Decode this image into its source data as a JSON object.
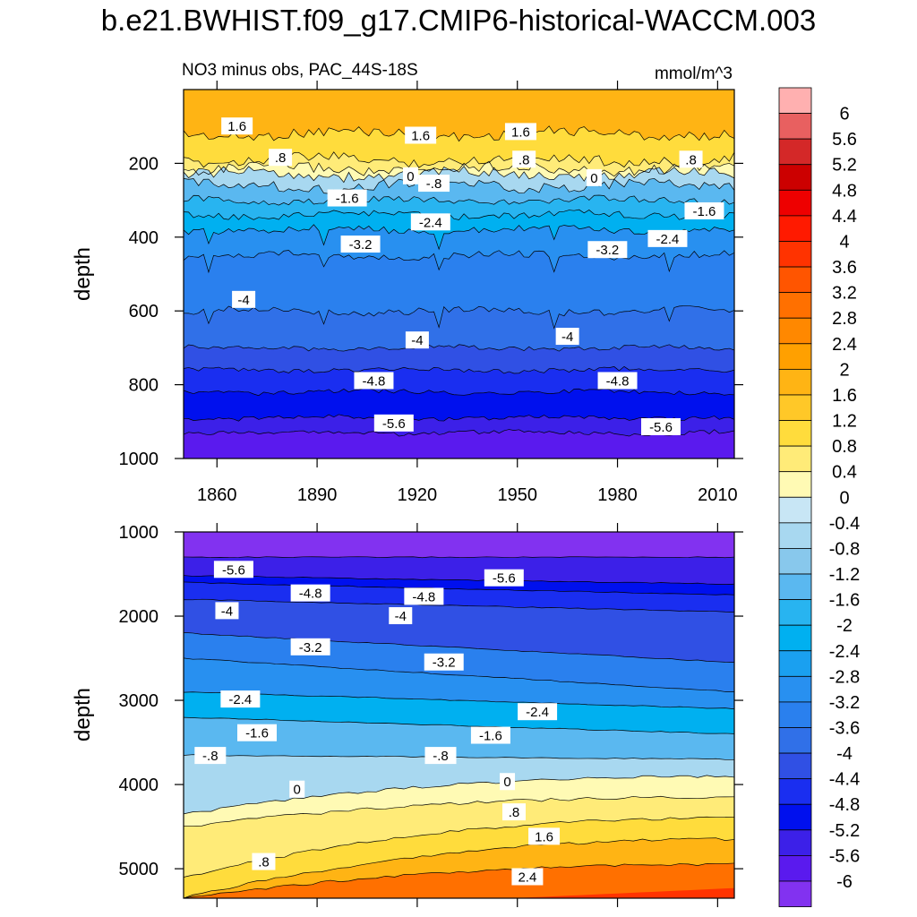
{
  "chart_data": {
    "type": "heatmap",
    "title": "b.e21.BWHIST.f09_g17.CMIP6-historical-WACCM.003",
    "subtitle_left": "NO3 minus obs, PAC_44S-18S",
    "subtitle_right": "mmol/m^3",
    "colorbar": {
      "levels": [
        "6",
        "5.6",
        "5.2",
        "4.8",
        "4.4",
        "4",
        "3.6",
        "3.2",
        "2.8",
        "2.4",
        "2",
        "1.6",
        "1.2",
        "0.8",
        "0.4",
        "0",
        "-0.4",
        "-0.8",
        "-1.2",
        "-1.6",
        "-2",
        "-2.4",
        "-2.8",
        "-3.2",
        "-3.6",
        "-4",
        "-4.4",
        "-4.8",
        "-5.2",
        "-5.6",
        "-6"
      ],
      "colors": [
        "#ffb0b0",
        "#e86060",
        "#d42828",
        "#cc0000",
        "#ee0000",
        "#ff1a00",
        "#ff3300",
        "#ff5500",
        "#ff7000",
        "#ff8800",
        "#ffa000",
        "#ffb414",
        "#ffc828",
        "#ffdc3c",
        "#ffeb78",
        "#fffab4",
        "#c8e6f5",
        "#a8d8f0",
        "#88c8ec",
        "#5ab8f0",
        "#28b4f0",
        "#00b0f0",
        "#1aa0f0",
        "#2890f0",
        "#2a80ee",
        "#3070e8",
        "#3050e4",
        "#1a2ef0",
        "#0010ee",
        "#3c20e8",
        "#5a1aee",
        "#8232f0"
      ]
    },
    "panels": [
      {
        "name": "upper",
        "ylabel": "depth",
        "y_range": [
          0,
          1000
        ],
        "y_reversed": true,
        "y_ticks": [
          200,
          400,
          600,
          800,
          1000
        ],
        "x_range": [
          1850,
          2015
        ],
        "x_ticks": [
          1860,
          1890,
          1920,
          1950,
          1980,
          2010
        ],
        "x_tick_labels": [
          "1860",
          "1890",
          "1920",
          "1950",
          "1980",
          "2010"
        ],
        "contours": [
          {
            "depth": 120,
            "value": 1.6
          },
          {
            "depth": 190,
            "value": 0.8
          },
          {
            "depth": 215,
            "value": 0.4
          },
          {
            "depth": 230,
            "value": 0
          },
          {
            "depth": 260,
            "value": -0.8
          },
          {
            "depth": 300,
            "value": -1.6
          },
          {
            "depth": 340,
            "value": -2.0
          },
          {
            "depth": 380,
            "value": -2.4
          },
          {
            "depth": 450,
            "value": -3.2
          },
          {
            "depth": 600,
            "value": -3.6
          },
          {
            "depth": 700,
            "value": -4.0
          },
          {
            "depth": 760,
            "value": -4.4
          },
          {
            "depth": 820,
            "value": -4.8
          },
          {
            "depth": 890,
            "value": -5.2
          },
          {
            "depth": 930,
            "value": -5.6
          },
          {
            "depth": 1000,
            "value": -6.0
          }
        ],
        "labels": [
          {
            "text": "1.6",
            "year": 1866,
            "depth": 100
          },
          {
            "text": "1.6",
            "year": 1921,
            "depth": 125
          },
          {
            "text": "1.6",
            "year": 1951,
            "depth": 115
          },
          {
            "text": ".8",
            "year": 1879,
            "depth": 185
          },
          {
            "text": ".8",
            "year": 1952,
            "depth": 190
          },
          {
            "text": ".8",
            "year": 2002,
            "depth": 190
          },
          {
            "text": "0",
            "year": 1918,
            "depth": 235
          },
          {
            "text": "0",
            "year": 1973,
            "depth": 240
          },
          {
            "text": "-.8",
            "year": 1925,
            "depth": 255
          },
          {
            "text": "-1.6",
            "year": 1899,
            "depth": 295
          },
          {
            "text": "-1.6",
            "year": 2006,
            "depth": 330
          },
          {
            "text": "-2.4",
            "year": 1924,
            "depth": 360
          },
          {
            "text": "-2.4",
            "year": 1995,
            "depth": 405
          },
          {
            "text": "-3.2",
            "year": 1903,
            "depth": 420
          },
          {
            "text": "-3.2",
            "year": 1977,
            "depth": 435
          },
          {
            "text": "-4",
            "year": 1868,
            "depth": 570
          },
          {
            "text": "-4",
            "year": 1920,
            "depth": 680
          },
          {
            "text": "-4",
            "year": 1965,
            "depth": 670
          },
          {
            "text": "-4.8",
            "year": 1907,
            "depth": 790
          },
          {
            "text": "-4.8",
            "year": 1980,
            "depth": 790
          },
          {
            "text": "-5.6",
            "year": 1913,
            "depth": 905
          },
          {
            "text": "-5.6",
            "year": 1993,
            "depth": 915
          }
        ]
      },
      {
        "name": "lower",
        "ylabel": "depth",
        "y_range": [
          1000,
          5350
        ],
        "y_reversed": true,
        "y_ticks": [
          1000,
          2000,
          3000,
          4000,
          5000
        ],
        "x_range": [
          1850,
          2015
        ],
        "x_ticks": [
          1860,
          1890,
          1920,
          1950,
          1980,
          2010
        ],
        "contours": [
          {
            "d0": 1300,
            "d1": 1300,
            "value": -5.6
          },
          {
            "d0": 1520,
            "d1": 1620,
            "value": -5.2
          },
          {
            "d0": 1600,
            "d1": 1750,
            "value": -4.8
          },
          {
            "d0": 1800,
            "d1": 1950,
            "value": -4.4
          },
          {
            "d0": 2200,
            "d1": 2550,
            "value": -3.6
          },
          {
            "d0": 2500,
            "d1": 2900,
            "value": -3.2
          },
          {
            "d0": 2900,
            "d1": 3100,
            "value": -2.4
          },
          {
            "d0": 3200,
            "d1": 3400,
            "value": -1.6
          },
          {
            "d0": 3650,
            "d1": 3700,
            "value": -0.8
          },
          {
            "d0": 4350,
            "d1": 3900,
            "value": 0
          },
          {
            "d0": 4500,
            "d1": 4150,
            "value": 0.4
          },
          {
            "d0": 5100,
            "d1": 4400,
            "value": 0.8
          },
          {
            "d0": 5350,
            "d1": 4650,
            "value": 1.6
          },
          {
            "d0": 5350,
            "d1": 4950,
            "value": 2.4
          }
        ],
        "labels": [
          {
            "text": "-5.6",
            "year": 1865,
            "depth": 1450
          },
          {
            "text": "-5.6",
            "year": 1946,
            "depth": 1550
          },
          {
            "text": "-4.8",
            "year": 1888,
            "depth": 1730
          },
          {
            "text": "-4.8",
            "year": 1922,
            "depth": 1770
          },
          {
            "text": "-4",
            "year": 1863,
            "depth": 1940
          },
          {
            "text": "-4",
            "year": 1915,
            "depth": 2000
          },
          {
            "text": "-3.2",
            "year": 1888,
            "depth": 2370
          },
          {
            "text": "-3.2",
            "year": 1928,
            "depth": 2550
          },
          {
            "text": "-2.4",
            "year": 1867,
            "depth": 2990
          },
          {
            "text": "-2.4",
            "year": 1956,
            "depth": 3140
          },
          {
            "text": "-1.6",
            "year": 1872,
            "depth": 3390
          },
          {
            "text": "-1.6",
            "year": 1942,
            "depth": 3420
          },
          {
            "text": "-.8",
            "year": 1858,
            "depth": 3660
          },
          {
            "text": "-.8",
            "year": 1927,
            "depth": 3660
          },
          {
            "text": "0",
            "year": 1884,
            "depth": 4060
          },
          {
            "text": "0",
            "year": 1947,
            "depth": 3970
          },
          {
            "text": ".8",
            "year": 1874,
            "depth": 4920
          },
          {
            "text": ".8",
            "year": 1949,
            "depth": 4330
          },
          {
            "text": "1.6",
            "year": 1958,
            "depth": 4620
          },
          {
            "text": "2.4",
            "year": 1953,
            "depth": 5100
          }
        ]
      }
    ]
  }
}
